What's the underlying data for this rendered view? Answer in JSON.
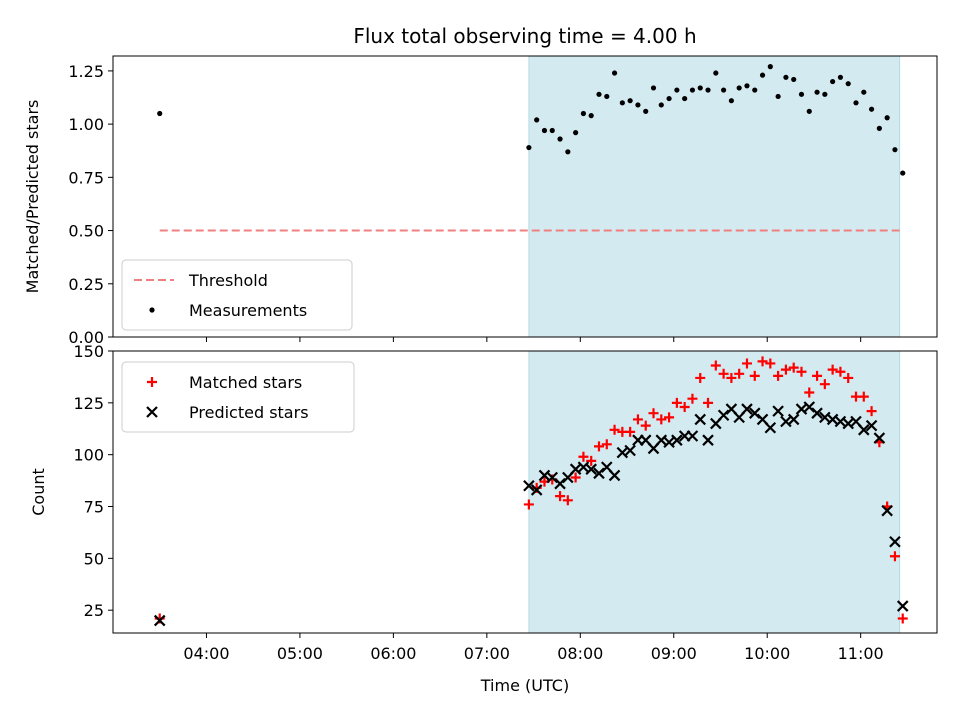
{
  "chart_data": [
    {
      "type": "scatter",
      "title": "Flux total observing time = 4.00 h",
      "xlabel": "",
      "ylabel": "Matched/Predicted stars",
      "ylim": [
        0,
        1.32
      ],
      "y_ticks": [
        "0.00",
        "0.25",
        "0.50",
        "0.75",
        "1.00",
        "1.25"
      ],
      "highlight_span": [
        "07:27",
        "11:25"
      ],
      "highlight_color": "#d3eaf0",
      "threshold": {
        "name": "Threshold",
        "value": 0.5,
        "color": "#f08080"
      },
      "legend_position": "lower left",
      "series": [
        {
          "name": "Measurements",
          "color": "#000000",
          "marker": "dot",
          "points": [
            [
              "03:30",
              1.05
            ],
            [
              "07:27",
              0.89
            ],
            [
              "07:32",
              1.02
            ],
            [
              "07:37",
              0.97
            ],
            [
              "07:42",
              0.97
            ],
            [
              "07:47",
              0.93
            ],
            [
              "07:52",
              0.87
            ],
            [
              "07:57",
              0.96
            ],
            [
              "08:02",
              1.05
            ],
            [
              "08:07",
              1.04
            ],
            [
              "08:12",
              1.14
            ],
            [
              "08:17",
              1.13
            ],
            [
              "08:22",
              1.24
            ],
            [
              "08:27",
              1.1
            ],
            [
              "08:32",
              1.11
            ],
            [
              "08:37",
              1.09
            ],
            [
              "08:42",
              1.06
            ],
            [
              "08:47",
              1.17
            ],
            [
              "08:52",
              1.09
            ],
            [
              "08:57",
              1.12
            ],
            [
              "09:02",
              1.16
            ],
            [
              "09:07",
              1.12
            ],
            [
              "09:12",
              1.16
            ],
            [
              "09:17",
              1.17
            ],
            [
              "09:22",
              1.16
            ],
            [
              "09:27",
              1.24
            ],
            [
              "09:32",
              1.16
            ],
            [
              "09:37",
              1.11
            ],
            [
              "09:42",
              1.17
            ],
            [
              "09:47",
              1.18
            ],
            [
              "09:52",
              1.16
            ],
            [
              "09:57",
              1.23
            ],
            [
              "10:02",
              1.27
            ],
            [
              "10:07",
              1.13
            ],
            [
              "10:12",
              1.22
            ],
            [
              "10:17",
              1.21
            ],
            [
              "10:22",
              1.14
            ],
            [
              "10:27",
              1.06
            ],
            [
              "10:32",
              1.15
            ],
            [
              "10:37",
              1.14
            ],
            [
              "10:42",
              1.2
            ],
            [
              "10:47",
              1.22
            ],
            [
              "10:52",
              1.19
            ],
            [
              "10:57",
              1.1
            ],
            [
              "11:02",
              1.15
            ],
            [
              "11:07",
              1.07
            ],
            [
              "11:12",
              0.98
            ],
            [
              "11:17",
              1.03
            ],
            [
              "11:22",
              0.88
            ],
            [
              "11:27",
              0.77
            ]
          ]
        }
      ]
    },
    {
      "type": "scatter",
      "title": "",
      "xlabel": "Time (UTC)",
      "ylabel": "Count",
      "ylim": [
        14,
        150
      ],
      "y_ticks": [
        "25",
        "50",
        "75",
        "100",
        "125",
        "150"
      ],
      "x_ticks": [
        "04:00",
        "05:00",
        "06:00",
        "07:00",
        "08:00",
        "09:00",
        "10:00",
        "11:00"
      ],
      "xlim": [
        "03:00",
        "11:49"
      ],
      "highlight_span": [
        "07:27",
        "11:25"
      ],
      "highlight_color": "#d3eaf0",
      "legend_position": "upper left",
      "series": [
        {
          "name": "Matched stars",
          "color": "#ff0000",
          "marker": "plus",
          "points": [
            [
              "03:30",
              21
            ],
            [
              "07:27",
              76
            ],
            [
              "07:32",
              84
            ],
            [
              "07:37",
              87
            ],
            [
              "07:42",
              88
            ],
            [
              "07:47",
              80
            ],
            [
              "07:52",
              78
            ],
            [
              "07:57",
              89
            ],
            [
              "08:02",
              99
            ],
            [
              "08:07",
              97
            ],
            [
              "08:12",
              104
            ],
            [
              "08:17",
              105
            ],
            [
              "08:22",
              112
            ],
            [
              "08:27",
              111
            ],
            [
              "08:32",
              111
            ],
            [
              "08:37",
              117
            ],
            [
              "08:42",
              114
            ],
            [
              "08:47",
              120
            ],
            [
              "08:52",
              117
            ],
            [
              "08:57",
              118
            ],
            [
              "09:02",
              125
            ],
            [
              "09:07",
              123
            ],
            [
              "09:12",
              127
            ],
            [
              "09:17",
              137
            ],
            [
              "09:22",
              125
            ],
            [
              "09:27",
              143
            ],
            [
              "09:32",
              139
            ],
            [
              "09:37",
              137
            ],
            [
              "09:42",
              139
            ],
            [
              "09:47",
              144
            ],
            [
              "09:52",
              138
            ],
            [
              "09:57",
              145
            ],
            [
              "10:02",
              144
            ],
            [
              "10:07",
              138
            ],
            [
              "10:12",
              141
            ],
            [
              "10:17",
              142
            ],
            [
              "10:22",
              140
            ],
            [
              "10:27",
              130
            ],
            [
              "10:32",
              138
            ],
            [
              "10:37",
              134
            ],
            [
              "10:42",
              141
            ],
            [
              "10:47",
              140
            ],
            [
              "10:52",
              137
            ],
            [
              "10:57",
              128
            ],
            [
              "11:02",
              128
            ],
            [
              "11:07",
              121
            ],
            [
              "11:12",
              106
            ],
            [
              "11:17",
              75
            ],
            [
              "11:22",
              51
            ],
            [
              "11:27",
              21
            ]
          ]
        },
        {
          "name": "Predicted stars",
          "color": "#000000",
          "marker": "x",
          "points": [
            [
              "03:30",
              20
            ],
            [
              "07:27",
              85
            ],
            [
              "07:32",
              83
            ],
            [
              "07:37",
              90
            ],
            [
              "07:42",
              89
            ],
            [
              "07:47",
              86
            ],
            [
              "07:52",
              89
            ],
            [
              "07:57",
              93
            ],
            [
              "08:02",
              94
            ],
            [
              "08:07",
              93
            ],
            [
              "08:12",
              91
            ],
            [
              "08:17",
              94
            ],
            [
              "08:22",
              90
            ],
            [
              "08:27",
              101
            ],
            [
              "08:32",
              102
            ],
            [
              "08:37",
              107
            ],
            [
              "08:42",
              107
            ],
            [
              "08:47",
              103
            ],
            [
              "08:52",
              107
            ],
            [
              "08:57",
              106
            ],
            [
              "09:02",
              107
            ],
            [
              "09:07",
              109
            ],
            [
              "09:12",
              109
            ],
            [
              "09:17",
              117
            ],
            [
              "09:22",
              107
            ],
            [
              "09:27",
              115
            ],
            [
              "09:32",
              119
            ],
            [
              "09:37",
              122
            ],
            [
              "09:42",
              118
            ],
            [
              "09:47",
              122
            ],
            [
              "09:52",
              120
            ],
            [
              "09:57",
              117
            ],
            [
              "10:02",
              113
            ],
            [
              "10:07",
              121
            ],
            [
              "10:12",
              116
            ],
            [
              "10:17",
              117
            ],
            [
              "10:22",
              122
            ],
            [
              "10:27",
              123
            ],
            [
              "10:32",
              120
            ],
            [
              "10:37",
              118
            ],
            [
              "10:42",
              117
            ],
            [
              "10:47",
              116
            ],
            [
              "10:52",
              115
            ],
            [
              "10:57",
              116
            ],
            [
              "11:02",
              112
            ],
            [
              "11:07",
              114
            ],
            [
              "11:12",
              108
            ],
            [
              "11:17",
              73
            ],
            [
              "11:22",
              58
            ],
            [
              "11:27",
              27
            ]
          ]
        }
      ]
    }
  ]
}
